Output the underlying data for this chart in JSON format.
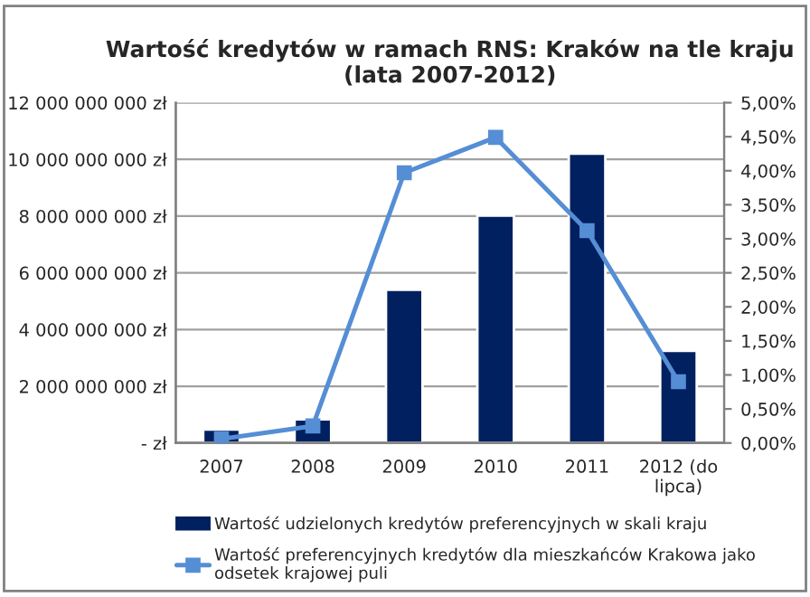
{
  "chart_data": {
    "type": "bar",
    "title": "Wartość kredytów w ramach RNS: Kraków na tle kraju\n(lata 2007-2012)",
    "categories": [
      "2007",
      "2008",
      "2009",
      "2010",
      "2011",
      "2012 (do\nlipca)"
    ],
    "series": [
      {
        "name": "Wartość udzielonych kredytów preferencyjnych w skali kraju",
        "color": "#002060",
        "values": [
          470000000,
          830000000,
          5400000000,
          8020000000,
          10200000000,
          3250000000
        ]
      },
      {
        "name": "Wartość preferencyjnych kredytów dla mieszkańców Krakowa jako\nodsetek krajowej puli",
        "type": "line",
        "axis": "y2",
        "color": "#558ed5",
        "marker": "square",
        "values": [
          0.06,
          0.25,
          3.97,
          4.49,
          3.12,
          0.9
        ]
      }
    ],
    "ylim": [
      0,
      12000000000
    ],
    "yticks": [
      {
        "value": 0,
        "label": "- zł"
      },
      {
        "value": 2000000000,
        "label": "2 000 000 000 zł"
      },
      {
        "value": 4000000000,
        "label": "4 000 000 000 zł"
      },
      {
        "value": 6000000000,
        "label": "6 000 000 000 zł"
      },
      {
        "value": 8000000000,
        "label": "8 000 000 000 zł"
      },
      {
        "value": 10000000000,
        "label": "10 000 000 000 zł"
      },
      {
        "value": 12000000000,
        "label": "12 000 000 000 zł"
      }
    ],
    "y2lim": [
      0,
      5
    ],
    "y2ticks": [
      {
        "value": 0,
        "label": "0,00%"
      },
      {
        "value": 0.5,
        "label": "0,50%"
      },
      {
        "value": 1,
        "label": "1,00%"
      },
      {
        "value": 1.5,
        "label": "1,50%"
      },
      {
        "value": 2,
        "label": "2,00%"
      },
      {
        "value": 2.5,
        "label": "2,50%"
      },
      {
        "value": 3,
        "label": "3,00%"
      },
      {
        "value": 3.5,
        "label": "3,50%"
      },
      {
        "value": 4,
        "label": "4,00%"
      },
      {
        "value": 4.5,
        "label": "4,50%"
      },
      {
        "value": 5,
        "label": "5,00%"
      }
    ],
    "grid": "y",
    "legend": "bottom"
  }
}
